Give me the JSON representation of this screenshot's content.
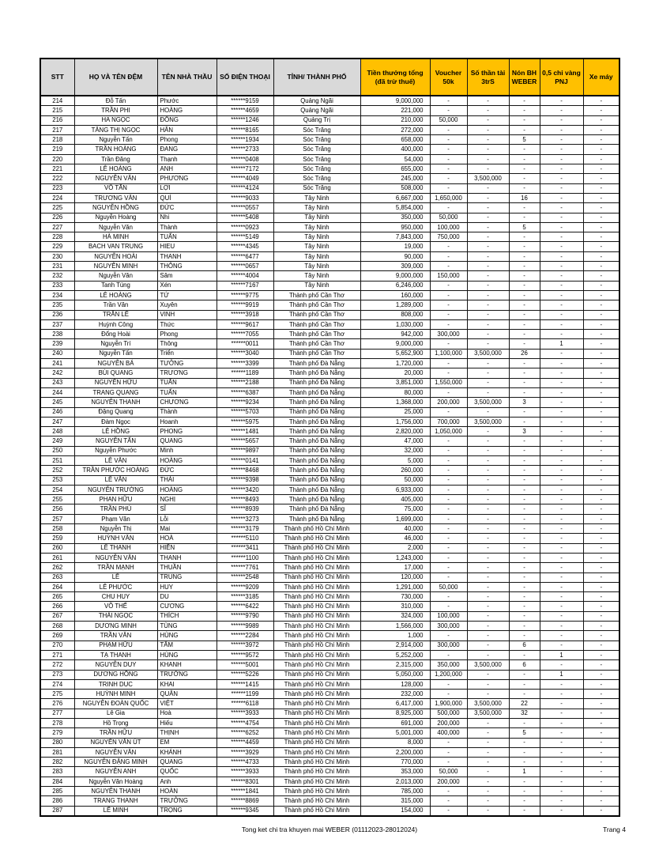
{
  "page": {
    "footer_center": "Tong ket chi tra khuyen mai WEBER (01112023-28012024)",
    "footer_right": "Trang 4"
  },
  "colors": {
    "header_gray": "#d9d9d9",
    "header_gold": "#ffc000",
    "border": "#000000"
  },
  "table": {
    "columns": [
      {
        "id": "stt",
        "label": "STT"
      },
      {
        "id": "ho_va_ten_dem",
        "label": "HỌ VÀ TÊN ĐỆM"
      },
      {
        "id": "ten_nha_thau",
        "label": "TÊN NHÀ THẦU"
      },
      {
        "id": "so_dien_thoai",
        "label": "SỐ ĐIỆN THOẠI"
      },
      {
        "id": "tinh_thanh_pho",
        "label": "TỈNH/ THÀNH PHỐ"
      },
      {
        "id": "tien_thuong_tong",
        "label": "Tiền thưởng tổng (đã trừ thuế)"
      },
      {
        "id": "voucher_50k",
        "label": "Voucher 50k"
      },
      {
        "id": "so_than_tai_3trs",
        "label": "Số thần tài 3trS"
      },
      {
        "id": "non_bh_weber",
        "label": "Nón BH WEBER"
      },
      {
        "id": "vang_pnj",
        "label": "0,5 chỉ vàng PNJ"
      },
      {
        "id": "xe_may",
        "label": "Xe máy"
      }
    ],
    "rows": [
      [
        "214",
        "Đỗ Tấn",
        "Phước",
        "******9159",
        "Quảng Ngãi",
        "9,000,000",
        "-",
        "-",
        "-",
        "-",
        "-"
      ],
      [
        "215",
        "TRẦN PHI",
        "HOÀNG",
        "******4659",
        "Quảng Ngãi",
        "221,000",
        "-",
        "-",
        "-",
        "-",
        "-"
      ],
      [
        "216",
        "HA NGỌC",
        "ĐÔNG",
        "******1246",
        "Quảng Trị",
        "210,000",
        "50,000",
        "-",
        "-",
        "-",
        "-"
      ],
      [
        "217",
        "TĂNG THỊ NGỌC",
        "HÂN",
        "******8165",
        "Sóc Trăng",
        "272,000",
        "-",
        "-",
        "-",
        "-",
        "-"
      ],
      [
        "218",
        "Nguyễn Tấn",
        "Phong",
        "******1934",
        "Sóc Trăng",
        "658,000",
        "-",
        "-",
        "5",
        "-",
        "-"
      ],
      [
        "219",
        "TRẦN HOÀNG",
        "ĐANG",
        "******2733",
        "Sóc Trăng",
        "400,000",
        "-",
        "-",
        "-",
        "-",
        "-"
      ],
      [
        "220",
        "Trần Đăng",
        "Thạnh",
        "******0408",
        "Sóc Trăng",
        "54,000",
        "-",
        "-",
        "-",
        "-",
        "-"
      ],
      [
        "221",
        "LÊ HOÀNG",
        "ANH",
        "******7172",
        "Sóc Trăng",
        "655,000",
        "-",
        "-",
        "-",
        "-",
        "-"
      ],
      [
        "222",
        "NGUYỄN VĂN",
        "PHƯƠNG",
        "******4049",
        "Sóc Trăng",
        "245,000",
        "-",
        "3,500,000",
        "-",
        "-",
        "-"
      ],
      [
        "223",
        "VÕ TẤN",
        "LỢI",
        "******4124",
        "Sóc Trăng",
        "508,000",
        "-",
        "-",
        "-",
        "-",
        "-"
      ],
      [
        "224",
        "TRƯƠNG VĂN",
        "QUÍ",
        "******9033",
        "Tây Ninh",
        "6,667,000",
        "1,650,000",
        "-",
        "16",
        "-",
        "-"
      ],
      [
        "225",
        "NGUYỄN HỒNG",
        "ĐỨC",
        "******0557",
        "Tây Ninh",
        "5,854,000",
        "-",
        "-",
        "-",
        "-",
        "-"
      ],
      [
        "226",
        "Nguyễn Hoàng",
        "Nhi",
        "******5408",
        "Tây Ninh",
        "350,000",
        "50,000",
        "-",
        "-",
        "-",
        "-"
      ],
      [
        "227",
        "Nguyễn Văn",
        "Thành",
        "******0923",
        "Tây Ninh",
        "950,000",
        "100,000",
        "-",
        "5",
        "-",
        "-"
      ],
      [
        "228",
        "HÀ MINH",
        "TUẤN",
        "******5149",
        "Tây Ninh",
        "7,843,000",
        "750,000",
        "-",
        "-",
        "-",
        "-"
      ],
      [
        "229",
        "BACH VAN TRUNG",
        "HIEU",
        "******4345",
        "Tây Ninh",
        "19,000",
        "-",
        "-",
        "-",
        "-",
        "-"
      ],
      [
        "230",
        "NGUYỄN HOÀI",
        "THANH",
        "******6477",
        "Tây Ninh",
        "90,000",
        "-",
        "-",
        "-",
        "-",
        "-"
      ],
      [
        "231",
        "NGUYỄN MINH",
        "THÔNG",
        "******0657",
        "Tây Ninh",
        "309,000",
        "-",
        "-",
        "-",
        "-",
        "-"
      ],
      [
        "232",
        "Nguyễn Văn",
        "Sâm",
        "******4004",
        "Tây Ninh",
        "9,000,000",
        "150,000",
        "-",
        "-",
        "-",
        "-"
      ],
      [
        "233",
        "Tanh Túng",
        "Xén",
        "******7167",
        "Tây Ninh",
        "6,246,000",
        "-",
        "-",
        "-",
        "-",
        "-"
      ],
      [
        "234",
        "LÊ HOÀNG",
        "TỨ",
        "******9775",
        "Thành phố Cần Thơ",
        "160,000",
        "-",
        "-",
        "-",
        "-",
        "-"
      ],
      [
        "235",
        "Trần Văn",
        "Xuyên",
        "******9919",
        "Thành phố Cần Thơ",
        "1,289,000",
        "-",
        "-",
        "-",
        "-",
        "-"
      ],
      [
        "236",
        "TRẦN LÊ",
        "VINH",
        "******3918",
        "Thành phố Cần Thơ",
        "808,000",
        "-",
        "-",
        "-",
        "-",
        "-"
      ],
      [
        "237",
        "Huỳnh Công",
        "Thức",
        "******9617",
        "Thành phố Cần Thơ",
        "1,030,000",
        "-",
        "-",
        "-",
        "-",
        "-"
      ],
      [
        "238",
        "Đổng Hoài",
        "Phong",
        "******7055",
        "Thành phố Cần Thơ",
        "942,000",
        "300,000",
        "-",
        "-",
        "-",
        "-"
      ],
      [
        "239",
        "Nguyễn Trí",
        "Thông",
        "******0011",
        "Thành phố Cần Thơ",
        "9,000,000",
        "-",
        "-",
        "-",
        "1",
        "-"
      ],
      [
        "240",
        "Nguyễn Tấn",
        "Triển",
        "******3040",
        "Thành phố Cần Thơ",
        "5,652,900",
        "1,100,000",
        "3,500,000",
        "26",
        "-",
        "-"
      ],
      [
        "241",
        "NGUYỄN BÁ",
        "TƯỞNG",
        "******3399",
        "Thành phố Đà Nẵng",
        "1,720,000",
        "-",
        "-",
        "-",
        "-",
        "-"
      ],
      [
        "242",
        "BÙI QUANG",
        "TRƯƠNG",
        "******1189",
        "Thành phố Đà Nẵng",
        "20,000",
        "-",
        "-",
        "-",
        "-",
        "-"
      ],
      [
        "243",
        "NGUYỄN HỮU",
        "TUẤN",
        "******2188",
        "Thành phố Đà Nẵng",
        "3,851,000",
        "1,550,000",
        "-",
        "-",
        "-",
        "-"
      ],
      [
        "244",
        "TRANG QUANG",
        "TUẤN",
        "******6387",
        "Thành phố Đà Nẵng",
        "80,000",
        "-",
        "-",
        "-",
        "-",
        "-"
      ],
      [
        "245",
        "NGUYỄN THANH",
        "CHƯƠNG",
        "******9234",
        "Thành phố Đà Nẵng",
        "1,368,000",
        "200,000",
        "3,500,000",
        "3",
        "-",
        "-"
      ],
      [
        "246",
        "Đặng Quang",
        "Thành",
        "******5703",
        "Thành phố Đà Nẵng",
        "25,000",
        "-",
        "-",
        "-",
        "-",
        "-"
      ],
      [
        "247",
        "Đàm Ngọc",
        "Hoanh",
        "******5975",
        "Thành phố Đà Nẵng",
        "1,756,000",
        "700,000",
        "3,500,000",
        "-",
        "-",
        "-"
      ],
      [
        "248",
        "LÊ HỒNG",
        "PHONG",
        "******1481",
        "Thành phố Đà Nẵng",
        "2,820,000",
        "1,050,000",
        "-",
        "3",
        "-",
        "-"
      ],
      [
        "249",
        "NGUYỄN TẤN",
        "QUANG",
        "******5657",
        "Thành phố Đà Nẵng",
        "47,000",
        "-",
        "-",
        "-",
        "-",
        "-"
      ],
      [
        "250",
        "Nguyễn Phước",
        "Minh",
        "******9897",
        "Thành phố Đà Nẵng",
        "32,000",
        "-",
        "-",
        "-",
        "-",
        "-"
      ],
      [
        "251",
        "LÊ VĂN",
        "HOÀNG",
        "******0141",
        "Thành phố Đà Nẵng",
        "5,000",
        "-",
        "-",
        "-",
        "-",
        "-"
      ],
      [
        "252",
        "TRẦN PHƯỚC HOÀNG",
        "ĐỨC",
        "******8468",
        "Thành phố Đà Nẵng",
        "260,000",
        "-",
        "-",
        "-",
        "-",
        "-"
      ],
      [
        "253",
        "LÊ VĂN",
        "THÁI",
        "******9398",
        "Thành phố Đà Nẵng",
        "50,000",
        "-",
        "-",
        "-",
        "-",
        "-"
      ],
      [
        "254",
        "NGUYỄN TRƯỜNG",
        "HOÀNG",
        "******3420",
        "Thành phố Đà Nẵng",
        "6,933,000",
        "-",
        "-",
        "-",
        "-",
        "-"
      ],
      [
        "255",
        "PHAN HỮU",
        "NGHỊ",
        "******8493",
        "Thành phố Đà Nẵng",
        "405,000",
        "-",
        "-",
        "-",
        "-",
        "-"
      ],
      [
        "256",
        "TRẦN PHÚ",
        "SĨ",
        "******8939",
        "Thành phố Đà Nẵng",
        "75,000",
        "-",
        "-",
        "-",
        "-",
        "-"
      ],
      [
        "257",
        "Phạm Văn",
        "Lỗi",
        "******3273",
        "Thành phố Đà Nẵng",
        "1,699,000",
        "-",
        "-",
        "-",
        "-",
        "-"
      ],
      [
        "258",
        "Nguyễn Thị",
        "Mai",
        "******3179",
        "Thành phố Hồ Chí Minh",
        "40,000",
        "-",
        "-",
        "-",
        "-",
        "-"
      ],
      [
        "259",
        "HUỲNH VĂN",
        "HOÀ",
        "******5110",
        "Thành phố Hồ Chí Minh",
        "46,000",
        "-",
        "-",
        "-",
        "-",
        "-"
      ],
      [
        "260",
        "LÊ THANH",
        "HIỀN",
        "******3411",
        "Thành phố Hồ Chí Minh",
        "2,000",
        "-",
        "-",
        "-",
        "-",
        "-"
      ],
      [
        "261",
        "NGUYỄN VĂN",
        "THANH",
        "******1100",
        "Thành phố Hồ Chí Minh",
        "1,243,000",
        "-",
        "-",
        "-",
        "-",
        "-"
      ],
      [
        "262",
        "TRẦN MẠNH",
        "THUẦN",
        "******7761",
        "Thành phố Hồ Chí Minh",
        "17,000",
        "-",
        "-",
        "-",
        "-",
        "-"
      ],
      [
        "263",
        "LÊ",
        "TRUNG",
        "******2548",
        "Thành phố Hồ Chí Minh",
        "120,000",
        "-",
        "-",
        "-",
        "-",
        "-"
      ],
      [
        "264",
        "LÊ PHƯỚC",
        "HUY",
        "******9209",
        "Thành phố Hồ Chí Minh",
        "1,291,000",
        "50,000",
        "-",
        "-",
        "-",
        "-"
      ],
      [
        "265",
        "CHU HUY",
        "DU",
        "******3185",
        "Thành phố Hồ Chí Minh",
        "730,000",
        "-",
        "-",
        "-",
        "-",
        "-"
      ],
      [
        "266",
        "VÕ THẾ",
        "CƯƠNG",
        "******6422",
        "Thành phố Hồ Chí Minh",
        "310,000",
        "-",
        "-",
        "-",
        "-",
        "-"
      ],
      [
        "267",
        "THÁI NGỌC",
        "THÍCH",
        "******9790",
        "Thành phố Hồ Chí Minh",
        "324,000",
        "100,000",
        "-",
        "-",
        "-",
        "-"
      ],
      [
        "268",
        "DƯƠNG MINH",
        "TÙNG",
        "******9989",
        "Thành phố Hồ Chí Minh",
        "1,566,000",
        "300,000",
        "-",
        "-",
        "-",
        "-"
      ],
      [
        "269",
        "TRẦN VĂN",
        "HÙNG",
        "******2284",
        "Thành phố Hồ Chí Minh",
        "1,000",
        "-",
        "-",
        "-",
        "-",
        "-"
      ],
      [
        "270",
        "PHẠM HỮU",
        "TÂM",
        "******3972",
        "Thành phố Hồ Chí Minh",
        "2,914,000",
        "300,000",
        "-",
        "6",
        "-",
        "-"
      ],
      [
        "271",
        "TẠ THANH",
        "HÙNG",
        "******9572",
        "Thành phố Hồ Chí Minh",
        "5,252,000",
        "-",
        "-",
        "-",
        "1",
        "-"
      ],
      [
        "272",
        "NGUYỄN DUY",
        "KHANH",
        "******5001",
        "Thành phố Hồ Chí Minh",
        "2,315,000",
        "350,000",
        "3,500,000",
        "6",
        "-",
        "-"
      ],
      [
        "273",
        "DƯƠNG HỒNG",
        "TRƯỞNG",
        "******5226",
        "Thành phố Hồ Chí Minh",
        "5,050,000",
        "1,200,000",
        "-",
        "-",
        "1",
        "-"
      ],
      [
        "274",
        "TRINH DUC",
        "KHAI",
        "******1415",
        "Thành phố Hồ Chí Minh",
        "128,000",
        "-",
        "-",
        "-",
        "-",
        "-"
      ],
      [
        "275",
        "HUỲNH MINH",
        "QUÂN",
        "******1199",
        "Thành phố Hồ Chí Minh",
        "232,000",
        "-",
        "-",
        "-",
        "-",
        "-"
      ],
      [
        "276",
        "NGUYỄN ĐOÀN QUỐC",
        "VIỆT",
        "******6118",
        "Thành phố Hồ Chí Minh",
        "6,417,000",
        "1,900,000",
        "3,500,000",
        "22",
        "-",
        "-"
      ],
      [
        "277",
        "Lê Gia",
        "Hoà",
        "******3933",
        "Thành phố Hồ Chí Minh",
        "8,925,000",
        "500,000",
        "3,500,000",
        "32",
        "-",
        "-"
      ],
      [
        "278",
        "Hồ Trọng",
        "Hiếu",
        "******4754",
        "Thành phố Hồ Chí Minh",
        "691,000",
        "200,000",
        "-",
        "-",
        "-",
        "-"
      ],
      [
        "279",
        "TRẦN HỮU",
        "THỊNH",
        "******6252",
        "Thành phố Hồ Chí Minh",
        "5,001,000",
        "400,000",
        "-",
        "5",
        "-",
        "-"
      ],
      [
        "280",
        "NGUYỄN VĂN ÚT",
        "EM",
        "******4459",
        "Thành phố Hồ Chí Minh",
        "8,000",
        "-",
        "-",
        "-",
        "-",
        "-"
      ],
      [
        "281",
        "NGUYỄN VĂN",
        "KHÁNH",
        "******3929",
        "Thành phố Hồ Chí Minh",
        "2,200,000",
        "-",
        "-",
        "-",
        "-",
        "-"
      ],
      [
        "282",
        "NGUYỄN ĐẶNG MINH",
        "QUANG",
        "******4733",
        "Thành phố Hồ Chí Minh",
        "770,000",
        "-",
        "-",
        "-",
        "-",
        "-"
      ],
      [
        "283",
        "NGUYỄN ANH",
        "QUỐC",
        "******3933",
        "Thành phố Hồ Chí Minh",
        "353,000",
        "50,000",
        "-",
        "1",
        "-",
        "-"
      ],
      [
        "284",
        "Nguyễn Văn Hoàng",
        "Anh",
        "******8301",
        "Thành phố Hồ Chí Minh",
        "2,013,000",
        "200,000",
        "-",
        "-",
        "-",
        "-"
      ],
      [
        "285",
        "NGUYỄN THANH",
        "HOÀN",
        "******1841",
        "Thành phố Hồ Chí Minh",
        "785,000",
        "-",
        "-",
        "-",
        "-",
        "-"
      ],
      [
        "286",
        "TRANG THANH",
        "TRƯỞNG",
        "******8869",
        "Thành phố Hồ Chí Minh",
        "315,000",
        "-",
        "-",
        "-",
        "-",
        "-"
      ],
      [
        "287",
        "LÊ MINH",
        "TRỌNG",
        "******9345",
        "Thành phố Hồ Chí Minh",
        "154,000",
        "-",
        "-",
        "-",
        "-",
        "-"
      ]
    ]
  }
}
